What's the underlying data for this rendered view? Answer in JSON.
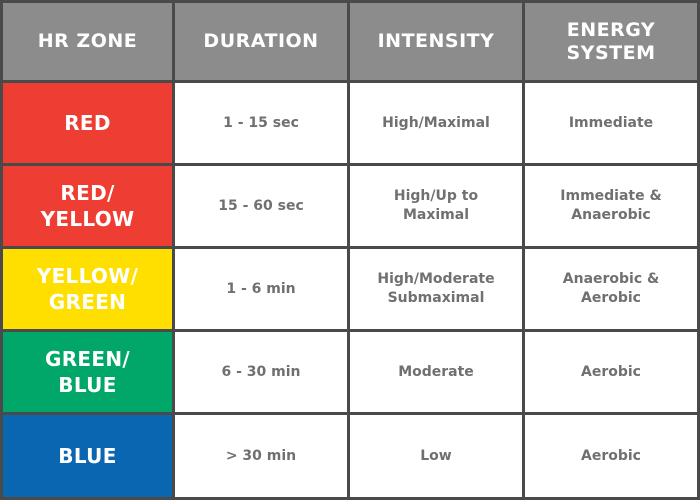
{
  "headers": {
    "zone": "HR ZONE",
    "duration": "DURATION",
    "intensity": "INTENSITY",
    "energy": "ENERGY\nSYSTEM"
  },
  "rows": [
    {
      "zone": "RED",
      "zone_color": "#ee3e33",
      "duration": "1 - 15 sec",
      "intensity": "High/Maximal",
      "energy": "Immediate"
    },
    {
      "zone": "RED/\nYELLOW",
      "zone_color": "#ee3e33",
      "duration": "15 - 60 sec",
      "intensity": "High/Up to\nMaximal",
      "energy": "Immediate &\nAnaerobic"
    },
    {
      "zone": "YELLOW/\nGREEN",
      "zone_color": "#ffdf00",
      "duration": "1 - 6 min",
      "intensity": "High/Moderate\nSubmaximal",
      "energy": "Anaerobic &\nAerobic"
    },
    {
      "zone": "GREEN/\nBLUE",
      "zone_color": "#00a768",
      "duration": "6 - 30 min",
      "intensity": "Moderate",
      "energy": "Aerobic"
    },
    {
      "zone": "BLUE",
      "zone_color": "#0b66b1",
      "duration": "> 30 min",
      "intensity": "Low",
      "energy": "Aerobic"
    }
  ],
  "colors": {
    "header_bg": "#8c8c8c",
    "grid_line": "#4a4a4a",
    "value_text": "#707070"
  }
}
